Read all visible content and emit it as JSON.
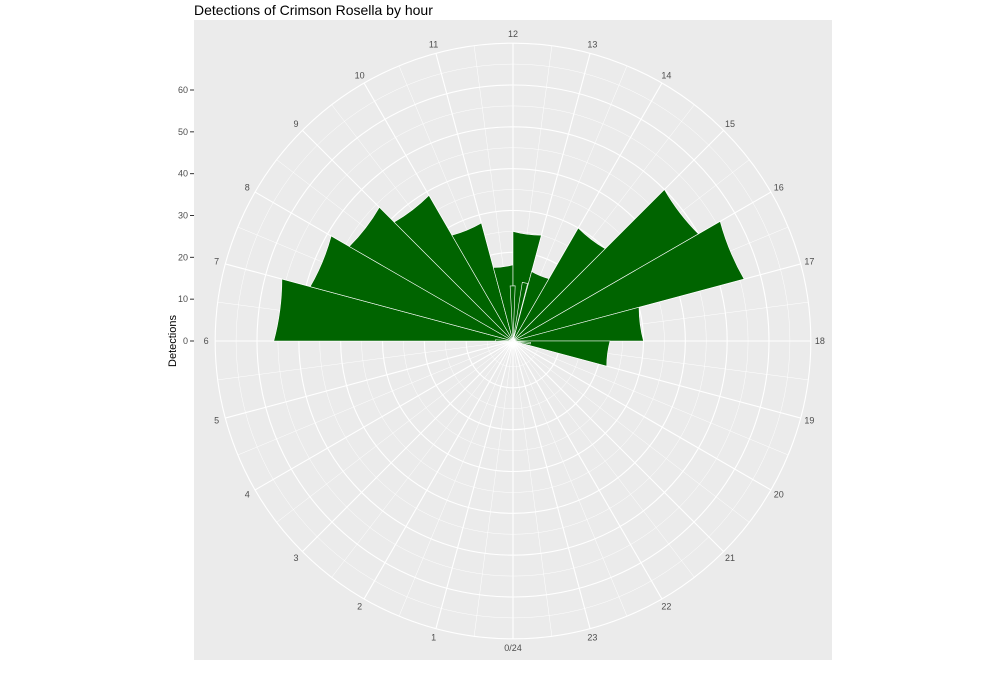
{
  "chart_data": {
    "type": "bar",
    "coord": "polar",
    "title": "Detections of Crimson Rosella by hour",
    "xlabel": "",
    "ylabel": "Detections",
    "categories": [
      "0/24",
      "1",
      "2",
      "3",
      "4",
      "5",
      "6",
      "7",
      "8",
      "9",
      "10",
      "11",
      "12",
      "13",
      "14",
      "15",
      "16",
      "17",
      "18",
      "19",
      "20",
      "21",
      "22",
      "23"
    ],
    "values": [
      0,
      0,
      0,
      0,
      0,
      0,
      56,
      49,
      44,
      39,
      28,
      17,
      25,
      16,
      30,
      50,
      56,
      30,
      22,
      0,
      0,
      0,
      0,
      0
    ],
    "inner_bar_values": [
      {
        "hour": 5.9,
        "value": 3
      },
      {
        "hour": 11.8,
        "value": 12
      },
      {
        "hour": 12.6,
        "value": 13
      },
      {
        "hour": 18.3,
        "value": 3
      }
    ],
    "ylim": [
      0,
      60
    ],
    "yticks": [
      0,
      10,
      20,
      30,
      40,
      50,
      60
    ],
    "bar_color": "#006400",
    "panel_color": "#ebebeb",
    "grid_color": "#ffffff",
    "grid": true,
    "legend": "none"
  }
}
